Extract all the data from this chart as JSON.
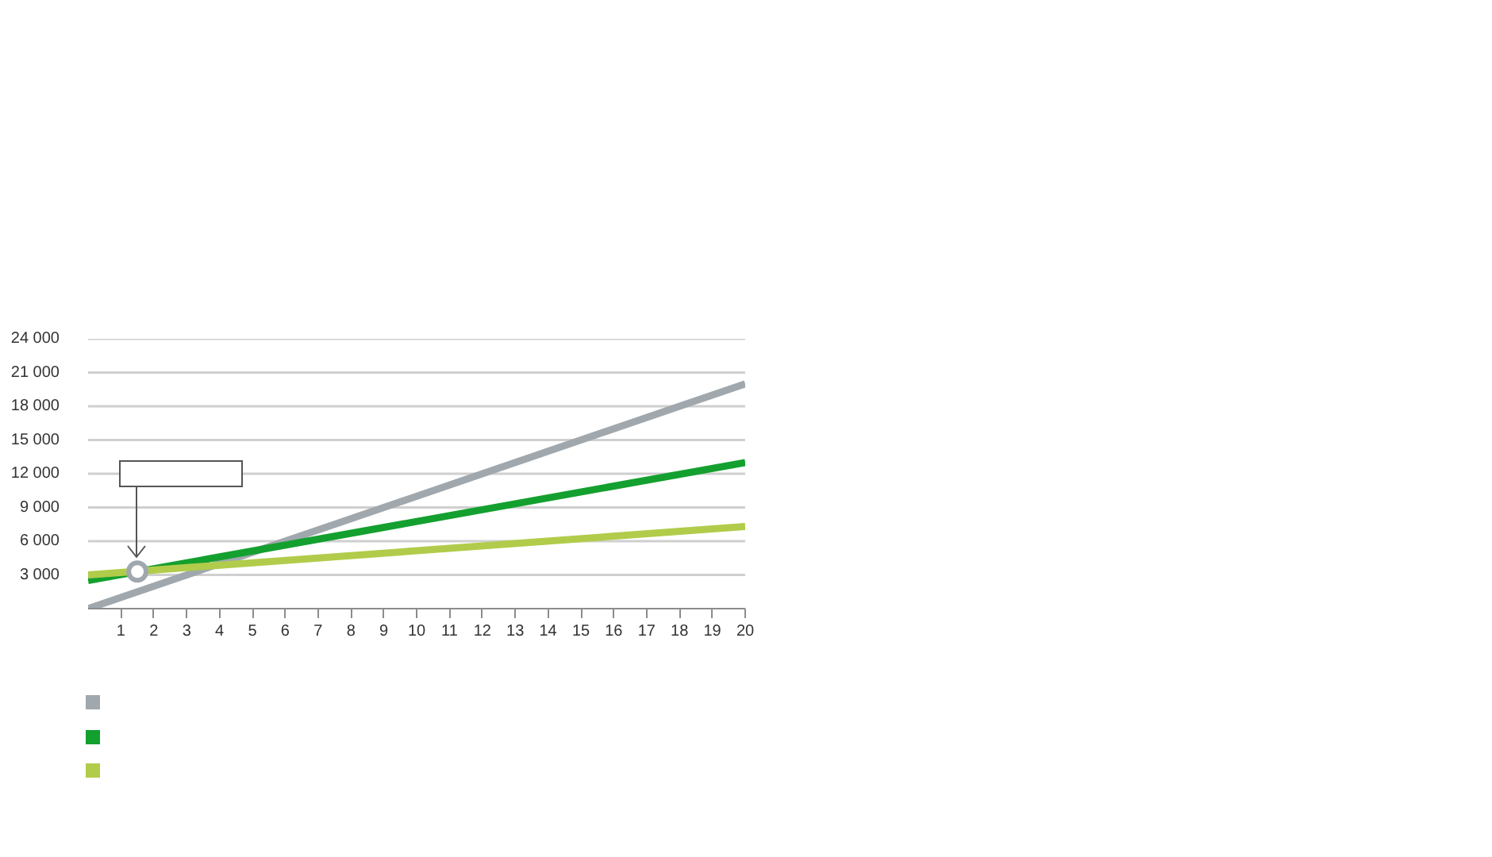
{
  "chart_data": {
    "type": "line",
    "xlim": [
      0,
      20
    ],
    "xticks": [
      1,
      2,
      3,
      4,
      5,
      6,
      7,
      8,
      9,
      10,
      11,
      12,
      13,
      14,
      15,
      16,
      17,
      18,
      19,
      20
    ],
    "ylim": [
      0,
      24000
    ],
    "yticks": [
      {
        "value": 3000,
        "label": "3 000"
      },
      {
        "value": 6000,
        "label": "6 000"
      },
      {
        "value": 9000,
        "label": "9 000"
      },
      {
        "value": 12000,
        "label": "12 000"
      },
      {
        "value": 15000,
        "label": "15 000"
      },
      {
        "value": 18000,
        "label": "18 000"
      },
      {
        "value": 21000,
        "label": "21 000"
      },
      {
        "value": 24000,
        "label": "24 000"
      }
    ],
    "grid": "y",
    "line_style": "solid",
    "series": [
      {
        "color": "#a0a8ae",
        "x": [
          0,
          20
        ],
        "values": [
          0,
          20000
        ]
      },
      {
        "color": "#14a02f",
        "x": [
          0,
          20
        ],
        "values": [
          2500,
          13000
        ]
      },
      {
        "color": "#b1cc4a",
        "x": [
          0,
          20
        ],
        "values": [
          3000,
          7300
        ]
      },
      {
        "type": "scatter",
        "marker": "circle",
        "color": "#a0a8ae",
        "x": [
          1.5
        ],
        "values": [
          3300
        ]
      }
    ]
  }
}
